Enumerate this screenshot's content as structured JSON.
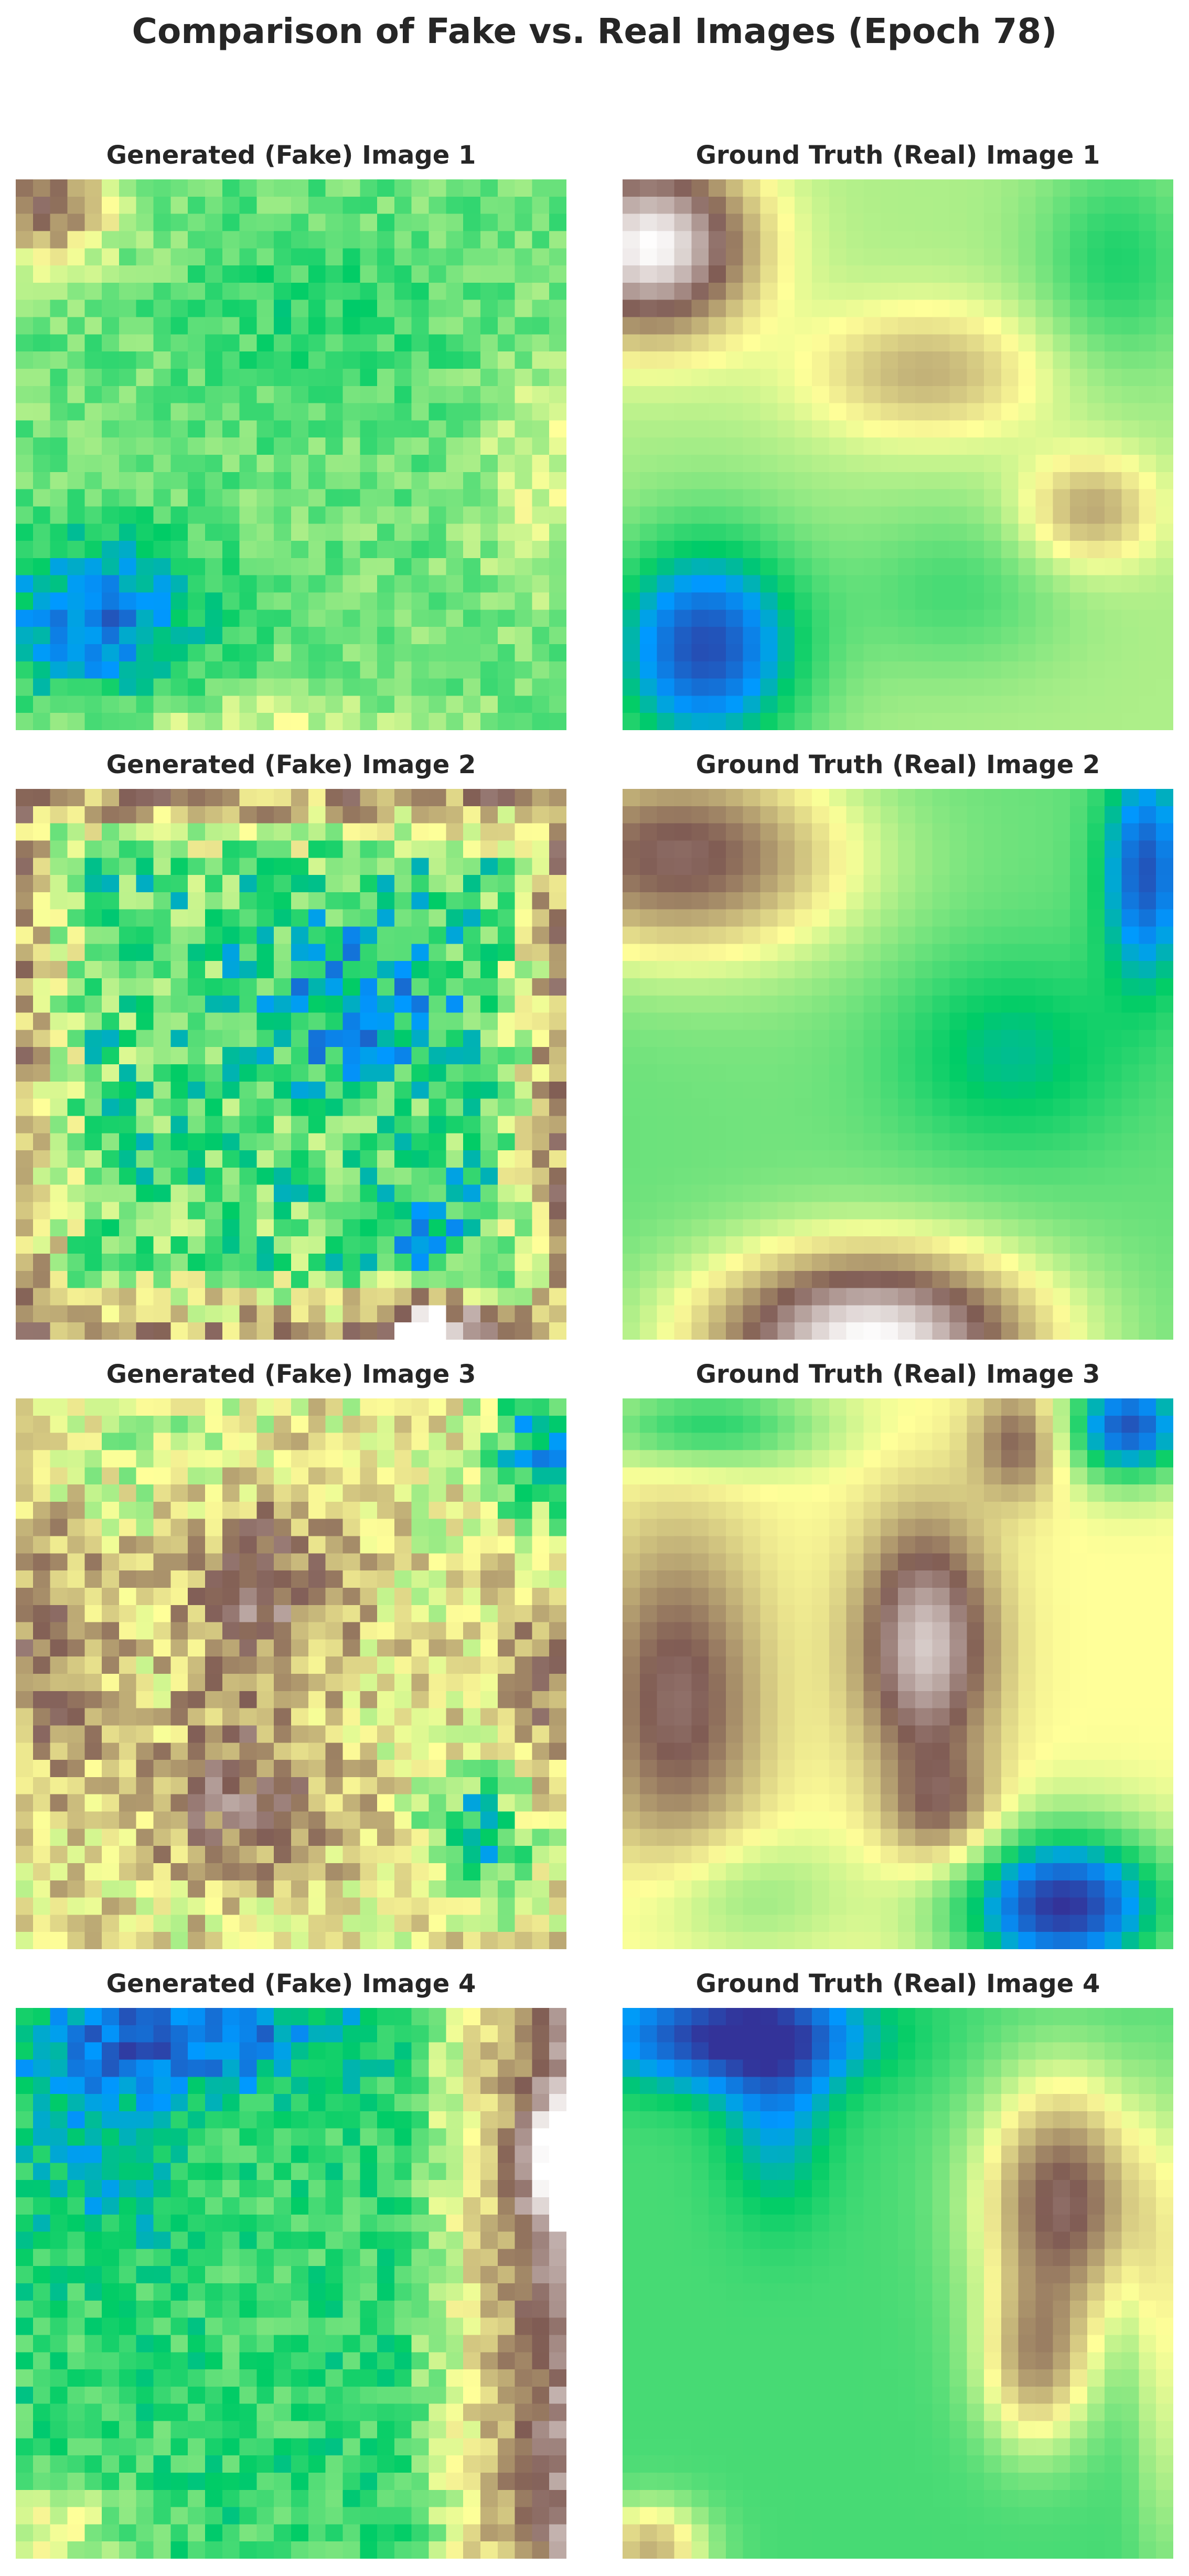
{
  "figure": {
    "title": "Comparison of Fake vs. Real Images (Epoch 78)",
    "colormap": "terrain",
    "pairs": [
      {
        "fake_label": "Generated (Fake) Image 1",
        "real_label": "Ground Truth (Real) Image 1"
      },
      {
        "fake_label": "Generated (Fake) Image 2",
        "real_label": "Ground Truth (Real) Image 2"
      },
      {
        "fake_label": "Generated (Fake) Image 3",
        "real_label": "Ground Truth (Real) Image 3"
      },
      {
        "fake_label": "Generated (Fake) Image 4",
        "real_label": "Ground Truth (Real) Image 4"
      }
    ]
  }
}
